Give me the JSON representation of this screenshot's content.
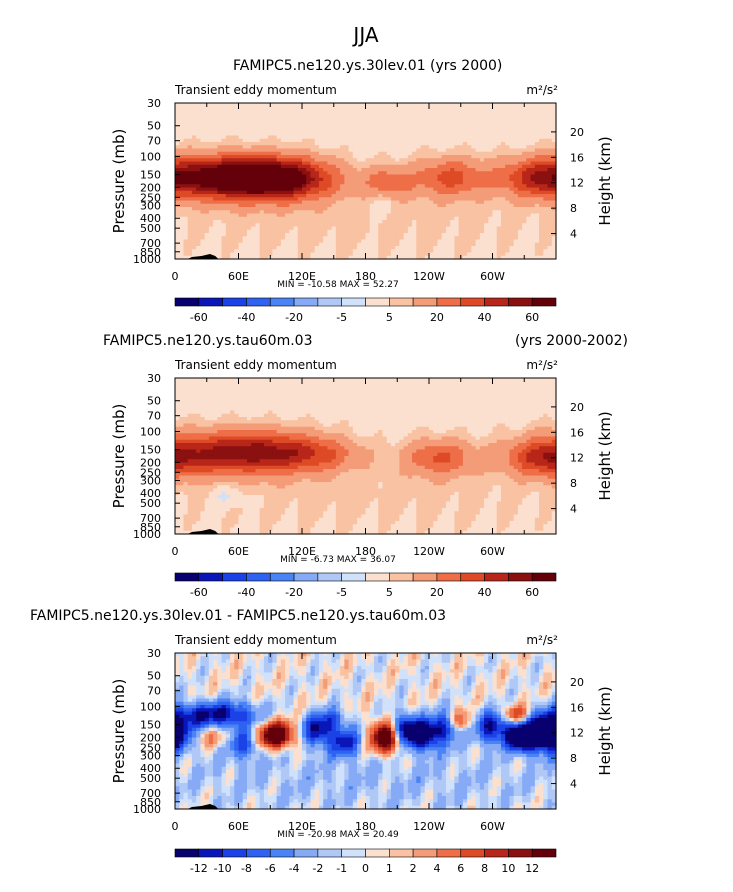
{
  "page": {
    "title": "JJA"
  },
  "units": {
    "m2s2": "m²/s²"
  },
  "chart_data": [
    {
      "type": "heatmap",
      "title": "FAMIPC5.ne120.ys.30lev.01 (yrs 2000)",
      "title_right": "",
      "subtitle": "Transient eddy momentum",
      "ylabel": "Pressure (mb)",
      "ylabel_right": "Height (km)",
      "x_ticks": [
        "0",
        "60E",
        "120E",
        "180",
        "120W",
        "60W"
      ],
      "x_tick_lons": [
        0,
        60,
        120,
        180,
        240,
        300
      ],
      "xlim": [
        0,
        360
      ],
      "pressure_ticks": [
        "30",
        "50",
        "70",
        "100",
        "150",
        "200",
        "250",
        "300",
        "400",
        "500",
        "700",
        "850",
        "1000"
      ],
      "pressure_values": [
        30,
        50,
        70,
        100,
        150,
        200,
        250,
        300,
        400,
        500,
        700,
        850,
        1000
      ],
      "height_ticks": [
        "4",
        "8",
        "12",
        "16",
        "20"
      ],
      "height_values": [
        4,
        8,
        12,
        16,
        20
      ],
      "stats": {
        "min_label": "MIN =",
        "min": "-10.58",
        "max_label": "MAX =",
        "max": "52.27"
      },
      "colorbar": {
        "labels": [
          "-60",
          "-40",
          "-20",
          "-5",
          "5",
          "20",
          "40",
          "60"
        ]
      },
      "blobs": [
        {
          "lon": 30,
          "p": 160,
          "value": 42,
          "dlon": 40,
          "dlogp": 0.16
        },
        {
          "lon": 100,
          "p": 165,
          "value": 52,
          "dlon": 35,
          "dlogp": 0.16
        },
        {
          "lon": 72,
          "p": 160,
          "value": 30,
          "dlon": 40,
          "dlogp": 0.16
        },
        {
          "lon": 200,
          "p": 185,
          "value": 26,
          "dlon": 15,
          "dlogp": 0.12
        },
        {
          "lon": 260,
          "p": 160,
          "value": 30,
          "dlon": 25,
          "dlogp": 0.15
        },
        {
          "lon": 342,
          "p": 160,
          "value": 28,
          "dlon": 25,
          "dlogp": 0.15
        },
        {
          "lon": 180,
          "p": 420,
          "value": 4,
          "dlon": 180,
          "dlogp": 0.3
        },
        {
          "lon": 195,
          "p": 250,
          "value": -9,
          "dlon": 10,
          "dlogp": 0.12
        }
      ]
    },
    {
      "type": "heatmap",
      "title": "FAMIPC5.ne120.ys.tau60m.03",
      "title_right": "(yrs 2000-2002)",
      "subtitle": "Transient eddy momentum",
      "ylabel": "Pressure (mb)",
      "ylabel_right": "Height (km)",
      "x_ticks": [
        "0",
        "60E",
        "120E",
        "180",
        "120W",
        "60W"
      ],
      "x_tick_lons": [
        0,
        60,
        120,
        180,
        240,
        300
      ],
      "xlim": [
        0,
        360
      ],
      "pressure_ticks": [
        "30",
        "50",
        "70",
        "100",
        "150",
        "200",
        "250",
        "300",
        "400",
        "500",
        "700",
        "850",
        "1000"
      ],
      "pressure_values": [
        30,
        50,
        70,
        100,
        150,
        200,
        250,
        300,
        400,
        500,
        700,
        850,
        1000
      ],
      "height_ticks": [
        "4",
        "8",
        "12",
        "16",
        "20"
      ],
      "height_values": [
        4,
        8,
        12,
        16,
        20
      ],
      "stats": {
        "min_label": "MIN =",
        "min": "-6.73",
        "max_label": "MAX =",
        "max": "36.07"
      },
      "colorbar": {
        "labels": [
          "-60",
          "-40",
          "-20",
          "-5",
          "5",
          "20",
          "40",
          "60"
        ]
      },
      "blobs": [
        {
          "lon": 35,
          "p": 160,
          "value": 32,
          "dlon": 45,
          "dlogp": 0.17
        },
        {
          "lon": 95,
          "p": 160,
          "value": 36,
          "dlon": 40,
          "dlogp": 0.16
        },
        {
          "lon": 140,
          "p": 170,
          "value": 12,
          "dlon": 25,
          "dlogp": 0.12
        },
        {
          "lon": 250,
          "p": 180,
          "value": 28,
          "dlon": 22,
          "dlogp": 0.14
        },
        {
          "lon": 350,
          "p": 185,
          "value": 30,
          "dlon": 25,
          "dlogp": 0.14
        },
        {
          "lon": 180,
          "p": 420,
          "value": 4,
          "dlon": 180,
          "dlogp": 0.3
        },
        {
          "lon": 50,
          "p": 420,
          "value": -6,
          "dlon": 12,
          "dlogp": 0.1
        }
      ]
    },
    {
      "type": "heatmap",
      "title": "FAMIPC5.ne120.ys.30lev.01 - FAMIPC5.ne120.ys.tau60m.03",
      "title_right": "",
      "subtitle": "Transient eddy momentum",
      "ylabel": "Pressure (mb)",
      "ylabel_right": "Height (km)",
      "x_ticks": [
        "0",
        "60E",
        "120E",
        "180",
        "120W",
        "60W"
      ],
      "x_tick_lons": [
        0,
        60,
        120,
        180,
        240,
        300
      ],
      "xlim": [
        0,
        360
      ],
      "pressure_ticks": [
        "30",
        "50",
        "70",
        "100",
        "150",
        "200",
        "250",
        "300",
        "400",
        "500",
        "700",
        "850",
        "1000"
      ],
      "pressure_values": [
        30,
        50,
        70,
        100,
        150,
        200,
        250,
        300,
        400,
        500,
        700,
        850,
        1000
      ],
      "height_ticks": [
        "4",
        "8",
        "12",
        "16",
        "20"
      ],
      "height_values": [
        4,
        8,
        12,
        16,
        20
      ],
      "stats": {
        "min_label": "MIN =",
        "min": "-20.98",
        "max_label": "MAX =",
        "max": "20.49"
      },
      "colorbar": {
        "labels": [
          "-12",
          "-10",
          "-8",
          "-6",
          "-4",
          "-2",
          "-1",
          "0",
          "1",
          "2",
          "4",
          "6",
          "8",
          "10",
          "12"
        ]
      },
      "blobs": [
        {
          "lon": 20,
          "p": 120,
          "value": -9,
          "dlon": 18,
          "dlogp": 0.1
        },
        {
          "lon": 55,
          "p": 120,
          "value": -10,
          "dlon": 18,
          "dlogp": 0.1
        },
        {
          "lon": 35,
          "p": 200,
          "value": 4,
          "dlon": 12,
          "dlogp": 0.08
        },
        {
          "lon": 65,
          "p": 230,
          "value": -8,
          "dlon": 10,
          "dlogp": 0.12
        },
        {
          "lon": 95,
          "p": 190,
          "value": 18,
          "dlon": 12,
          "dlogp": 0.1
        },
        {
          "lon": 135,
          "p": 170,
          "value": -12,
          "dlon": 10,
          "dlogp": 0.12
        },
        {
          "lon": 150,
          "p": 130,
          "value": -6,
          "dlon": 8,
          "dlogp": 0.08
        },
        {
          "lon": 160,
          "p": 220,
          "value": -10,
          "dlon": 10,
          "dlogp": 0.12
        },
        {
          "lon": 200,
          "p": 200,
          "value": 20,
          "dlon": 10,
          "dlogp": 0.12
        },
        {
          "lon": 215,
          "p": 170,
          "value": -14,
          "dlon": 10,
          "dlogp": 0.12
        },
        {
          "lon": 235,
          "p": 190,
          "value": -14,
          "dlon": 10,
          "dlogp": 0.12
        },
        {
          "lon": 255,
          "p": 160,
          "value": -10,
          "dlon": 10,
          "dlogp": 0.12
        },
        {
          "lon": 270,
          "p": 140,
          "value": 8,
          "dlon": 8,
          "dlogp": 0.08
        },
        {
          "lon": 300,
          "p": 160,
          "value": -12,
          "dlon": 12,
          "dlogp": 0.12
        },
        {
          "lon": 322,
          "p": 120,
          "value": 9,
          "dlon": 8,
          "dlogp": 0.07
        },
        {
          "lon": 328,
          "p": 200,
          "value": -18,
          "dlon": 10,
          "dlogp": 0.1
        },
        {
          "lon": 352,
          "p": 180,
          "value": -21,
          "dlon": 14,
          "dlogp": 0.14
        },
        {
          "lon": 180,
          "p": 500,
          "value": -2,
          "dlon": 180,
          "dlogp": 0.3
        }
      ]
    }
  ]
}
